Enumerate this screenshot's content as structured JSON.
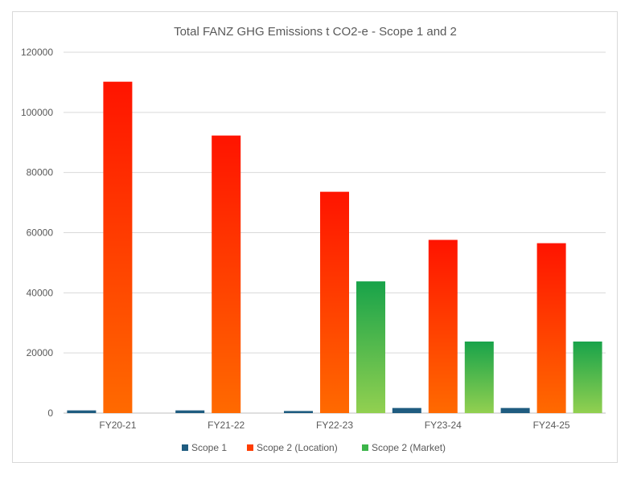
{
  "chart_data": {
    "type": "bar",
    "title": "Total FANZ GHG Emissions t CO2-e - Scope 1 and 2",
    "xlabel": "",
    "ylabel": "",
    "categories": [
      "FY20-21",
      "FY21-22",
      "FY22-23",
      "FY23-24",
      "FY24-25"
    ],
    "ylim": [
      0,
      120000
    ],
    "yticks": [
      0,
      20000,
      40000,
      60000,
      80000,
      100000,
      120000
    ],
    "ytick_labels": [
      "0",
      "20000",
      "40000",
      "60000",
      "80000",
      "100000",
      "120000"
    ],
    "grid": true,
    "legend_position": "bottom",
    "series": [
      {
        "name": "Scope 1",
        "values": [
          900,
          900,
          700,
          1700,
          1700
        ],
        "color": "#1f5c80"
      },
      {
        "name": "Scope 2 (Location)",
        "values": [
          110200,
          92300,
          73600,
          57600,
          56500
        ],
        "gradient_top": "#ff1400",
        "gradient_bottom": "#ff6a00"
      },
      {
        "name": "Scope 2 (Market)",
        "values": [
          null,
          null,
          43800,
          23800,
          23800
        ],
        "gradient_top": "#18a34a",
        "gradient_bottom": "#92d050"
      }
    ]
  }
}
